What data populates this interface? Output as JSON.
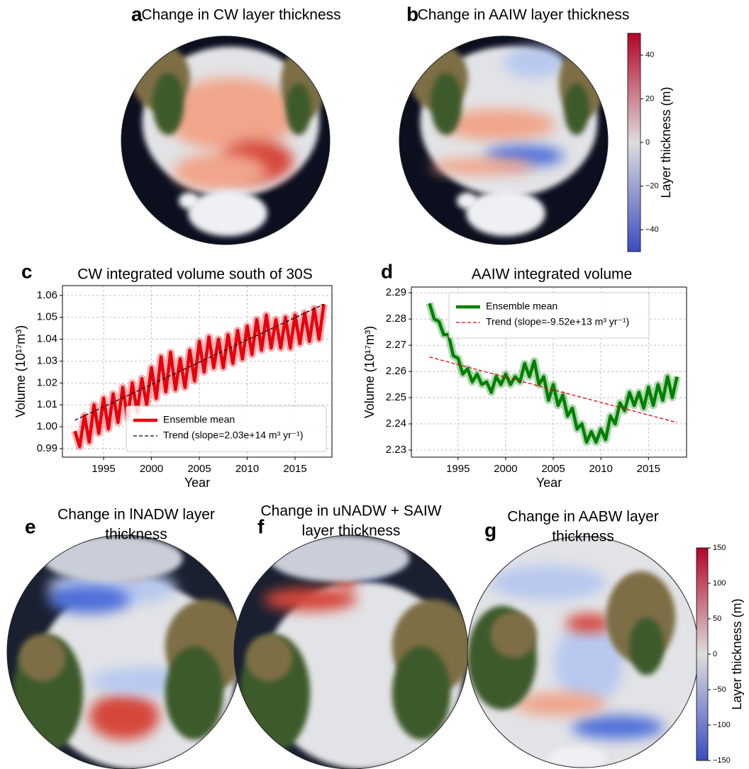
{
  "maps": [
    {
      "letter": "a",
      "title": [
        "Change in CW layer thickness"
      ]
    },
    {
      "letter": "b",
      "title": [
        "Change in AAIW layer thickness"
      ]
    },
    {
      "letter": "e",
      "title": [
        "Change in lNADW layer",
        "thickness"
      ]
    },
    {
      "letter": "f",
      "title": [
        "Change in uNADW + SAIW",
        "layer thickness"
      ]
    },
    {
      "letter": "g",
      "title": [
        "Change in AABW layer",
        "thickness"
      ]
    }
  ],
  "colorbars": [
    {
      "label": "Layer thickness (m)",
      "lim": [
        -50,
        50
      ],
      "colors": [
        "#3b4cc0",
        "#dddddd",
        "#b40426"
      ],
      "ticks": [
        40,
        20,
        0,
        {
          "value": -20,
          "label": "−20"
        },
        {
          "value": -40,
          "label": "−40"
        }
      ]
    },
    {
      "label": "Layer thickness (m)",
      "lim": [
        -150,
        150
      ],
      "colors": [
        "#3b4cc0",
        "#dddddd",
        "#b40426"
      ],
      "ticks": [
        150,
        100,
        50,
        0,
        {
          "value": -50,
          "label": "−50"
        },
        {
          "value": -100,
          "label": "−100"
        },
        {
          "value": -150,
          "label": "−150"
        }
      ]
    }
  ],
  "chart_data": [
    {
      "type": "line",
      "letter": "c",
      "title": "CW integrated volume south of 30S",
      "xlabel": "Year",
      "ylabel": "Volume (10¹⁷m³)",
      "xlim": [
        1990.7,
        2018.85
      ],
      "xticks": [
        1995,
        2000,
        2005,
        2010,
        2015
      ],
      "ylim": [
        0.9861,
        1.0645
      ],
      "yticks": [
        0.99,
        {
          "value": 1,
          "label": "1.00"
        },
        1.01,
        1.02,
        1.03,
        1.04,
        1.05,
        1.06
      ],
      "grid": true,
      "legend": "lower right",
      "series": [
        {
          "name": "Ensemble mean",
          "color": "#e8000b",
          "dash": false,
          "x": [
            1992.0,
            1992.5,
            1993.0,
            1993.5,
            1994.0,
            1994.5,
            1995.0,
            1995.5,
            1996.0,
            1996.5,
            1997.0,
            1997.5,
            1998.0,
            1998.5,
            1999.0,
            1999.5,
            2000.0,
            2000.5,
            2001.0,
            2001.5,
            2002.0,
            2002.5,
            2003.0,
            2003.5,
            2004.0,
            2004.5,
            2005.0,
            2005.5,
            2006.0,
            2006.5,
            2007.0,
            2007.5,
            2008.0,
            2008.5,
            2009.0,
            2009.5,
            2010.0,
            2010.5,
            2011.0,
            2011.5,
            2012.0,
            2012.5,
            2013.0,
            2013.5,
            2014.0,
            2014.5,
            2015.0,
            2015.5,
            2016.0,
            2016.5,
            2017.0,
            2017.5,
            2018.0
          ],
          "values": [
            0.998,
            0.991,
            1.005,
            0.993,
            1.01,
            0.997,
            1.013,
            0.999,
            1.015,
            1.002,
            1.018,
            1.004,
            1.02,
            1.007,
            1.022,
            1.01,
            1.027,
            1.013,
            1.032,
            1.016,
            1.034,
            1.017,
            1.031,
            1.018,
            1.035,
            1.021,
            1.039,
            1.025,
            1.041,
            1.027,
            1.04,
            1.027,
            1.042,
            1.029,
            1.044,
            1.031,
            1.046,
            1.033,
            1.049,
            1.035,
            1.051,
            1.036,
            1.049,
            1.036,
            1.05,
            1.036,
            1.051,
            1.038,
            1.052,
            1.039,
            1.054,
            1.04,
            1.056
          ]
        },
        {
          "name": "Trend (slope=2.03e+14 m³ yr⁻¹)",
          "color": "#000000",
          "dash": true,
          "x": [
            1992,
            2018
          ],
          "values": [
            1.003,
            1.056
          ]
        }
      ]
    },
    {
      "type": "line",
      "letter": "d",
      "title": "AAIW integrated volume",
      "xlabel": "Year",
      "ylabel": "Volume (10¹⁷m³)",
      "xlim": [
        1990.1,
        2019.0
      ],
      "xticks": [
        1995,
        2000,
        2005,
        2010,
        2015
      ],
      "ylim": [
        2.2273,
        2.2922
      ],
      "yticks": [
        2.23,
        2.24,
        2.25,
        2.26,
        2.27,
        2.28,
        2.29
      ],
      "grid": true,
      "legend": "upper center",
      "series": [
        {
          "name": "Ensemble mean",
          "color": "#008000",
          "dash": false,
          "x": [
            1992.0,
            1992.5,
            1993.0,
            1993.5,
            1994.0,
            1994.5,
            1995.0,
            1995.5,
            1996.0,
            1996.5,
            1997.0,
            1997.5,
            1998.0,
            1998.5,
            1999.0,
            1999.5,
            2000.0,
            2000.5,
            2001.0,
            2001.5,
            2002.0,
            2002.5,
            2003.0,
            2003.5,
            2004.0,
            2004.5,
            2005.0,
            2005.5,
            2006.0,
            2006.5,
            2007.0,
            2007.5,
            2008.0,
            2008.5,
            2009.0,
            2009.5,
            2010.0,
            2010.5,
            2011.0,
            2011.5,
            2012.0,
            2012.5,
            2013.0,
            2013.5,
            2014.0,
            2014.5,
            2015.0,
            2015.5,
            2016.0,
            2016.5,
            2017.0,
            2017.5,
            2018.0
          ],
          "values": [
            2.286,
            2.28,
            2.279,
            2.274,
            2.274,
            2.266,
            2.265,
            2.259,
            2.261,
            2.256,
            2.259,
            2.255,
            2.256,
            2.252,
            2.258,
            2.255,
            2.259,
            2.255,
            2.258,
            2.256,
            2.263,
            2.258,
            2.264,
            2.255,
            2.258,
            2.249,
            2.255,
            2.247,
            2.251,
            2.243,
            2.246,
            2.238,
            2.24,
            2.233,
            2.237,
            2.233,
            2.238,
            2.234,
            2.243,
            2.24,
            2.248,
            2.245,
            2.252,
            2.247,
            2.252,
            2.246,
            2.254,
            2.247,
            2.255,
            2.249,
            2.258,
            2.25,
            2.258
          ]
        },
        {
          "name": "Trend (slope=-9.52e+13 m³ yr⁻¹)",
          "color": "#e8000b",
          "dash": true,
          "x": [
            1992,
            2018
          ],
          "values": [
            2.2655,
            2.2405
          ]
        }
      ]
    }
  ]
}
